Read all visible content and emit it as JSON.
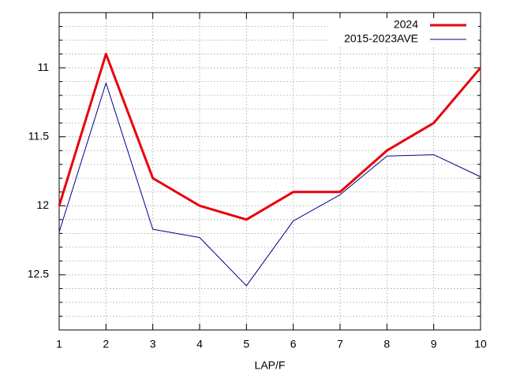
{
  "chart_data": {
    "type": "line",
    "xlabel": "LAP/F",
    "x": [
      1,
      2,
      3,
      4,
      5,
      6,
      7,
      8,
      9,
      10
    ],
    "xlim": [
      1,
      10
    ],
    "xticks": [
      1,
      2,
      3,
      4,
      5,
      6,
      7,
      8,
      9,
      10
    ],
    "ylim": [
      12.9,
      10.6
    ],
    "yticks": [
      11,
      11.5,
      12,
      12.5
    ],
    "yminorticks": [
      10.7,
      10.8,
      10.9,
      11.1,
      11.2,
      11.3,
      11.4,
      11.6,
      11.7,
      11.8,
      11.9,
      12.1,
      12.2,
      12.3,
      12.4,
      12.6,
      12.7,
      12.8
    ],
    "grid": true,
    "legend": "upper-right",
    "series": [
      {
        "name": "2024",
        "color": "#e8000b",
        "width": 3,
        "values": [
          12.0,
          10.9,
          11.8,
          12.0,
          12.1,
          11.9,
          11.9,
          11.6,
          11.4,
          11.0
        ]
      },
      {
        "name": "2015-2023AVE",
        "color": "#00008b",
        "width": 1,
        "values": [
          12.19,
          11.11,
          12.17,
          12.23,
          12.58,
          12.11,
          11.92,
          11.64,
          11.63,
          11.79
        ]
      }
    ]
  }
}
